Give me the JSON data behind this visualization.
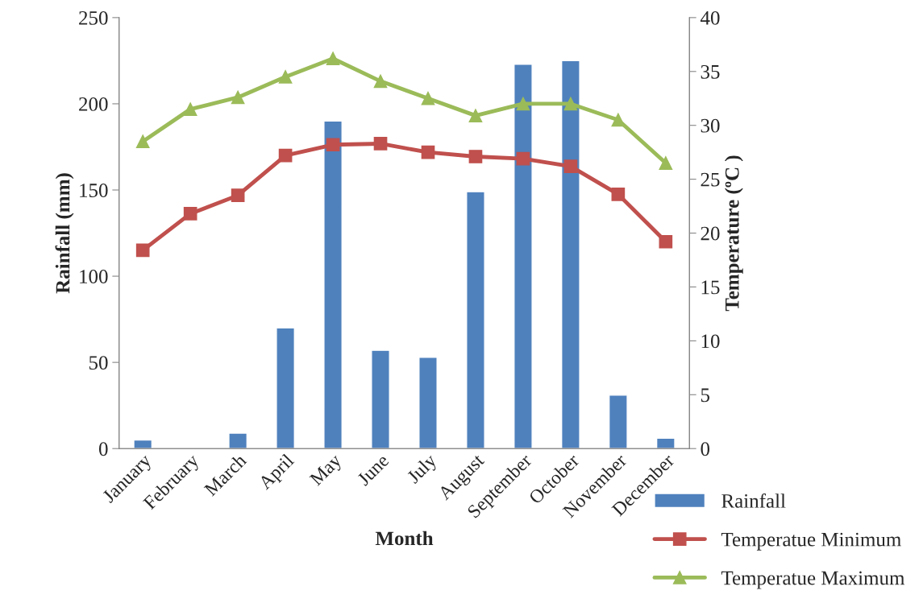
{
  "chart_data": {
    "type": "bar",
    "xlabel": "Month",
    "ylabel": "Rainfall (mm)",
    "y2label": "Temperature (ºC )",
    "categories": [
      "January",
      "February",
      "March",
      "April",
      "May",
      "June",
      "July",
      "August",
      "September",
      "October",
      "November",
      "December"
    ],
    "series": [
      {
        "name": "Rainfall",
        "color": "#4f81bd",
        "values": [
          5,
          0.5,
          9,
          70,
          190,
          57,
          53,
          149,
          223,
          225,
          31,
          6
        ]
      },
      {
        "name": "Temperatue Minimum",
        "type": "line",
        "axis": "y2",
        "marker": "square",
        "color": "#c0504d",
        "values": [
          18.4,
          21.8,
          23.5,
          27.2,
          28.2,
          28.3,
          27.5,
          27.1,
          26.9,
          26.2,
          23.6,
          19.2
        ]
      },
      {
        "name": "Temperatue Maximum",
        "type": "line",
        "axis": "y2",
        "marker": "triangle",
        "color": "#9bbb59",
        "values": [
          28.5,
          31.5,
          32.6,
          34.5,
          36.2,
          34.1,
          32.5,
          30.9,
          32.0,
          32.0,
          30.5,
          26.5
        ]
      }
    ],
    "ylim": [
      0,
      250
    ],
    "yticks": [
      0,
      50,
      100,
      150,
      200,
      250
    ],
    "y2lim": [
      0,
      40
    ],
    "y2ticks": [
      0,
      5,
      10,
      15,
      20,
      25,
      30,
      35,
      40
    ],
    "legend": "bottom right",
    "grid": false
  }
}
